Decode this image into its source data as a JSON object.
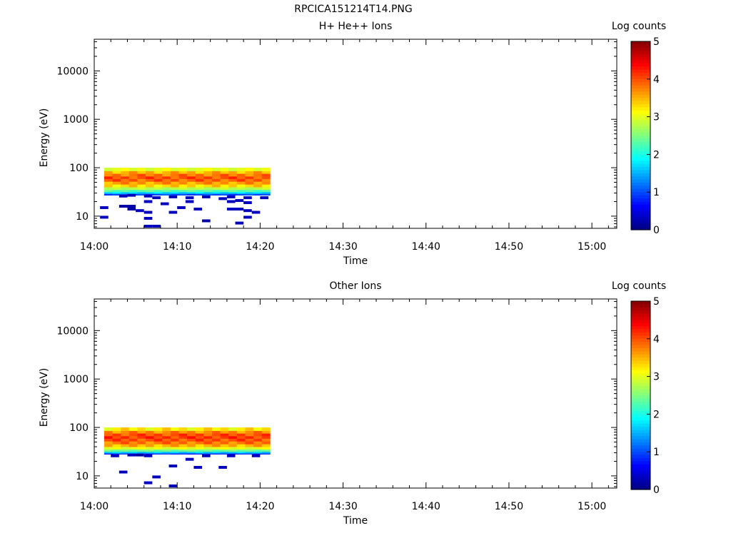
{
  "page_title": "RPCICA151214T14.PNG",
  "colorbar": {
    "label": "Log counts",
    "ticks": [
      "0",
      "1",
      "2",
      "3",
      "4",
      "5"
    ],
    "range": [
      0,
      5
    ],
    "colormap": "jet"
  },
  "chart_data": [
    {
      "type": "heatmap",
      "title": "H+ He++ Ions",
      "xlabel": "Time",
      "ylabel": "Energy (eV)",
      "x_ticks": [
        "14:00",
        "14:10",
        "14:20",
        "14:30",
        "14:40",
        "14:50",
        "15:00"
      ],
      "xlim_minutes": [
        0,
        63
      ],
      "y_ticks": [
        "10",
        "100",
        "1000",
        "10000"
      ],
      "y_scale": "log",
      "ylim": [
        5.6,
        45000
      ],
      "data_time_range_minutes": [
        1.2,
        21.2
      ],
      "core_band": {
        "energy_range_eV": [
          27,
          100
        ],
        "profile": [
          {
            "energy_eV": 90,
            "log_counts": 3.0
          },
          {
            "energy_eV": 80,
            "log_counts": 3.5
          },
          {
            "energy_eV": 70,
            "log_counts": 3.8
          },
          {
            "energy_eV": 62,
            "log_counts": 4.0
          },
          {
            "energy_eV": 55,
            "log_counts": 3.9
          },
          {
            "energy_eV": 48,
            "log_counts": 3.6
          },
          {
            "energy_eV": 42,
            "log_counts": 3.3
          },
          {
            "energy_eV": 37,
            "log_counts": 2.8
          },
          {
            "energy_eV": 33,
            "log_counts": 2.3
          },
          {
            "energy_eV": 30,
            "log_counts": 1.7
          },
          {
            "energy_eV": 28,
            "log_counts": 1.0
          }
        ]
      },
      "low_energy_counts": [
        {
          "t": 1.2,
          "e": 15,
          "v": 0.3
        },
        {
          "t": 1.2,
          "e": 9.5,
          "v": 0.3
        },
        {
          "t": 3.5,
          "e": 26,
          "v": 0.3
        },
        {
          "t": 3.5,
          "e": 16,
          "v": 0.2
        },
        {
          "t": 4.5,
          "e": 27,
          "v": 0.3
        },
        {
          "t": 4.5,
          "e": 16,
          "v": 0.2
        },
        {
          "t": 4.5,
          "e": 14,
          "v": 0.2
        },
        {
          "t": 5.5,
          "e": 13,
          "v": 0.3
        },
        {
          "t": 6.5,
          "e": 26,
          "v": 0.3
        },
        {
          "t": 6.5,
          "e": 20,
          "v": 0.3
        },
        {
          "t": 6.5,
          "e": 12,
          "v": 0.3
        },
        {
          "t": 6.5,
          "e": 9,
          "v": 0.3
        },
        {
          "t": 6.5,
          "e": 6.2,
          "v": 0.3
        },
        {
          "t": 7.5,
          "e": 24,
          "v": 0.3
        },
        {
          "t": 7.5,
          "e": 6.2,
          "v": 0.3
        },
        {
          "t": 8.5,
          "e": 18,
          "v": 0.3
        },
        {
          "t": 9.5,
          "e": 25,
          "v": 0.3
        },
        {
          "t": 9.5,
          "e": 12,
          "v": 0.3
        },
        {
          "t": 10.5,
          "e": 15,
          "v": 0.3
        },
        {
          "t": 11.5,
          "e": 24,
          "v": 0.3
        },
        {
          "t": 11.5,
          "e": 20,
          "v": 0.3
        },
        {
          "t": 12.5,
          "e": 14,
          "v": 0.3
        },
        {
          "t": 13.5,
          "e": 25,
          "v": 0.3
        },
        {
          "t": 13.5,
          "e": 8,
          "v": 0.2
        },
        {
          "t": 15.5,
          "e": 23,
          "v": 0.3
        },
        {
          "t": 16.5,
          "e": 25,
          "v": 0.3
        },
        {
          "t": 16.5,
          "e": 20,
          "v": 0.3
        },
        {
          "t": 16.5,
          "e": 14,
          "v": 0.3
        },
        {
          "t": 17.5,
          "e": 21,
          "v": 0.3
        },
        {
          "t": 17.5,
          "e": 14,
          "v": 0.3
        },
        {
          "t": 17.5,
          "e": 7.2,
          "v": 0.3
        },
        {
          "t": 18.5,
          "e": 24,
          "v": 0.3
        },
        {
          "t": 18.5,
          "e": 19,
          "v": 0.3
        },
        {
          "t": 18.5,
          "e": 13,
          "v": 0.3
        },
        {
          "t": 18.5,
          "e": 9.5,
          "v": 0.3
        },
        {
          "t": 19.5,
          "e": 12,
          "v": 0.3
        },
        {
          "t": 20.5,
          "e": 24,
          "v": 0.3
        }
      ]
    },
    {
      "type": "heatmap",
      "title": "Other Ions",
      "xlabel": "Time",
      "ylabel": "Energy (eV)",
      "x_ticks": [
        "14:00",
        "14:10",
        "14:20",
        "14:30",
        "14:40",
        "14:50",
        "15:00"
      ],
      "xlim_minutes": [
        0,
        63
      ],
      "y_ticks": [
        "10",
        "100",
        "1000",
        "10000"
      ],
      "y_scale": "log",
      "ylim": [
        5.6,
        45000
      ],
      "data_time_range_minutes": [
        1.2,
        21.2
      ],
      "core_band": {
        "energy_range_eV": [
          28,
          100
        ],
        "profile": [
          {
            "energy_eV": 90,
            "log_counts": 3.2
          },
          {
            "energy_eV": 80,
            "log_counts": 3.7
          },
          {
            "energy_eV": 70,
            "log_counts": 4.0
          },
          {
            "energy_eV": 62,
            "log_counts": 4.1
          },
          {
            "energy_eV": 55,
            "log_counts": 4.0
          },
          {
            "energy_eV": 48,
            "log_counts": 3.8
          },
          {
            "energy_eV": 42,
            "log_counts": 3.5
          },
          {
            "energy_eV": 37,
            "log_counts": 3.0
          },
          {
            "energy_eV": 33,
            "log_counts": 2.4
          },
          {
            "energy_eV": 30,
            "log_counts": 1.6
          },
          {
            "energy_eV": 28,
            "log_counts": 0.8
          }
        ]
      },
      "low_energy_counts": [
        {
          "t": 2.5,
          "e": 26,
          "v": 0.3
        },
        {
          "t": 3.5,
          "e": 12,
          "v": 0.3
        },
        {
          "t": 4.5,
          "e": 27,
          "v": 0.3
        },
        {
          "t": 5.5,
          "e": 27,
          "v": 0.2
        },
        {
          "t": 6.5,
          "e": 26,
          "v": 0.3
        },
        {
          "t": 6.5,
          "e": 7.2,
          "v": 0.3
        },
        {
          "t": 7.5,
          "e": 9.5,
          "v": 0.3
        },
        {
          "t": 9.5,
          "e": 16,
          "v": 0.3
        },
        {
          "t": 9.5,
          "e": 6.2,
          "v": 0.3
        },
        {
          "t": 11.5,
          "e": 22,
          "v": 0.3
        },
        {
          "t": 12.5,
          "e": 15,
          "v": 0.3
        },
        {
          "t": 13.5,
          "e": 26,
          "v": 0.3
        },
        {
          "t": 15.5,
          "e": 15,
          "v": 0.3
        },
        {
          "t": 16.5,
          "e": 26,
          "v": 0.3
        },
        {
          "t": 19.5,
          "e": 26,
          "v": 0.3
        }
      ]
    }
  ]
}
